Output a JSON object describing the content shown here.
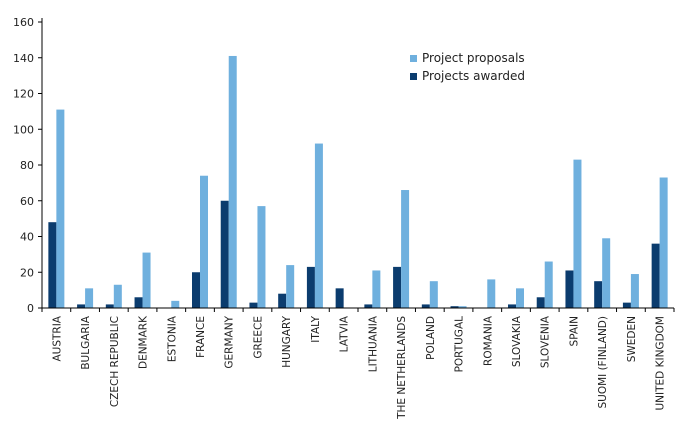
{
  "chart_data": {
    "type": "bar",
    "title": "",
    "xlabel": "",
    "ylabel": "",
    "ylim": [
      0,
      160
    ],
    "yticks": [
      0,
      20,
      40,
      60,
      80,
      100,
      120,
      140,
      160
    ],
    "grid": false,
    "legend_position": "top-right",
    "categories": [
      "AUSTRIA",
      "BULGARIA",
      "CZECH REPUBLIC",
      "DENMARK",
      "ESTONIA",
      "FRANCE",
      "GERMANY",
      "GREECE",
      "HUNGARY",
      "ITALY",
      "LATVIA",
      "LITHUANIA",
      "THE NETHERLANDS",
      "POLAND",
      "PORTUGAL",
      "ROMANIA",
      "SLOVAKIA",
      "SLOVENIA",
      "SPAIN",
      "SUOMI (FINLAND)",
      "SWEDEN",
      "UNITED KINGDOM"
    ],
    "series": [
      {
        "name": "Projects awarded",
        "color": "#0b3c6e",
        "values": [
          48,
          2,
          2,
          6,
          0,
          20,
          60,
          3,
          8,
          23,
          11,
          2,
          23,
          2,
          1,
          0,
          2,
          6,
          21,
          15,
          3,
          36
        ]
      },
      {
        "name": "Project proposals",
        "color": "#6fb0de",
        "values": [
          111,
          11,
          13,
          31,
          4,
          74,
          141,
          57,
          24,
          92,
          0,
          21,
          66,
          15,
          1,
          16,
          11,
          26,
          83,
          39,
          19,
          73
        ]
      }
    ],
    "legend_order": [
      "Project proposals",
      "Projects awarded"
    ]
  }
}
